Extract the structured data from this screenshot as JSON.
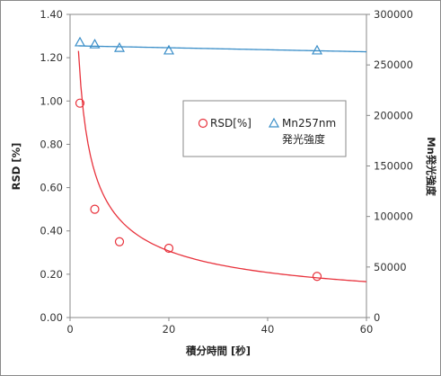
{
  "chart_data": {
    "type": "scatter",
    "x_label": "積分時間 [秒]",
    "y_left_label": "RSD [%]",
    "y_right_label": "Mn発光強度",
    "x_range": [
      0,
      60
    ],
    "x_ticks": [
      0,
      20,
      40,
      60
    ],
    "y_left_range": [
      0.0,
      1.4
    ],
    "y_left_ticks": [
      "0.00",
      "0.20",
      "0.40",
      "0.60",
      "0.80",
      "1.00",
      "1.20",
      "1.40"
    ],
    "y_right_range": [
      0,
      300000
    ],
    "y_right_ticks": [
      "0",
      "50000",
      "100000",
      "150000",
      "200000",
      "250000",
      "300000"
    ],
    "grid": false,
    "legend_position": "center-right",
    "series": [
      {
        "name": "RSD[%]",
        "axis": "left",
        "marker": "circle",
        "color": "#e8323c",
        "x": [
          2,
          5,
          10,
          20,
          50
        ],
        "y": [
          0.99,
          0.5,
          0.35,
          0.32,
          0.19
        ],
        "trendline": {
          "type": "power",
          "coef": 1.66,
          "exponent": -0.563,
          "x_range": [
            1.7,
            60
          ]
        }
      },
      {
        "name": "Mn257nm\n発光強度",
        "axis": "right",
        "marker": "triangle",
        "color": "#3a8ec8",
        "x": [
          2,
          5,
          10,
          20,
          50
        ],
        "y": [
          272000,
          270000,
          266500,
          264000,
          264000
        ],
        "trendline": {
          "type": "linear",
          "slope": -100,
          "intercept": 269000,
          "x_range": [
            1.7,
            60
          ]
        }
      }
    ]
  }
}
